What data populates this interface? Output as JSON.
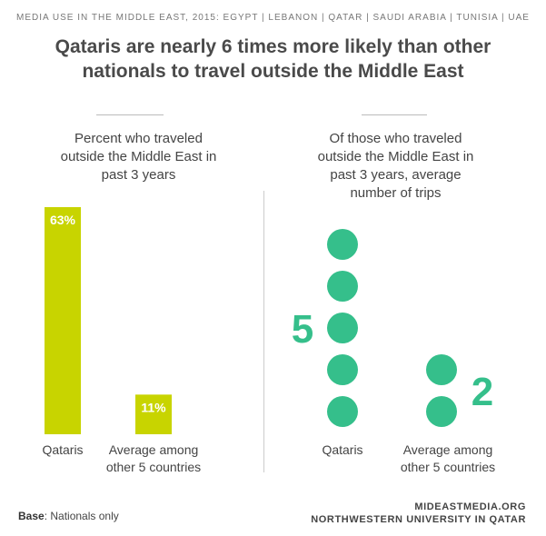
{
  "header": {
    "supertitle": "MEDIA USE IN THE MIDDLE EAST, 2015: EGYPT | LEBANON | QATAR | SAUDI ARABIA | TUNISIA | UAE",
    "title_line1": "Qataris are nearly 6 times more likely than other",
    "title_line2": "nationals to travel outside the Middle East"
  },
  "colors": {
    "bar": "#c8d400",
    "dot": "#35bf8b",
    "text": "#444444",
    "divider": "#cccccc"
  },
  "chart_data": [
    {
      "type": "bar",
      "title_lines": [
        "Percent who traveled",
        "outside the Middle East in",
        "past 3 years"
      ],
      "categories": [
        "Qataris",
        "Average among\nother 5 countries"
      ],
      "category_lines": [
        [
          "Qataris"
        ],
        [
          "Average among",
          "other 5 countries"
        ]
      ],
      "values": [
        63,
        11
      ],
      "data_labels": [
        "63%",
        "11%"
      ],
      "unit": "%",
      "ylim": [
        0,
        63
      ],
      "grid": false
    },
    {
      "type": "scatter",
      "style": "dot-count",
      "title_lines": [
        "Of those who traveled",
        "outside the Middle East in",
        "past 3 years, average",
        "number of trips"
      ],
      "categories": [
        "Qataris",
        "Average among\nother 5 countries"
      ],
      "category_lines": [
        [
          "Qataris"
        ],
        [
          "Average among",
          "other 5 countries"
        ]
      ],
      "values": [
        5,
        2
      ],
      "data_labels": [
        "5",
        "2"
      ],
      "grid": false
    }
  ],
  "footer": {
    "base_label": "Base",
    "base_text": ": Nationals only",
    "source_line1": "MIDEASTMEDIA.ORG",
    "source_line2": "NORTHWESTERN UNIVERSITY IN QATAR"
  }
}
